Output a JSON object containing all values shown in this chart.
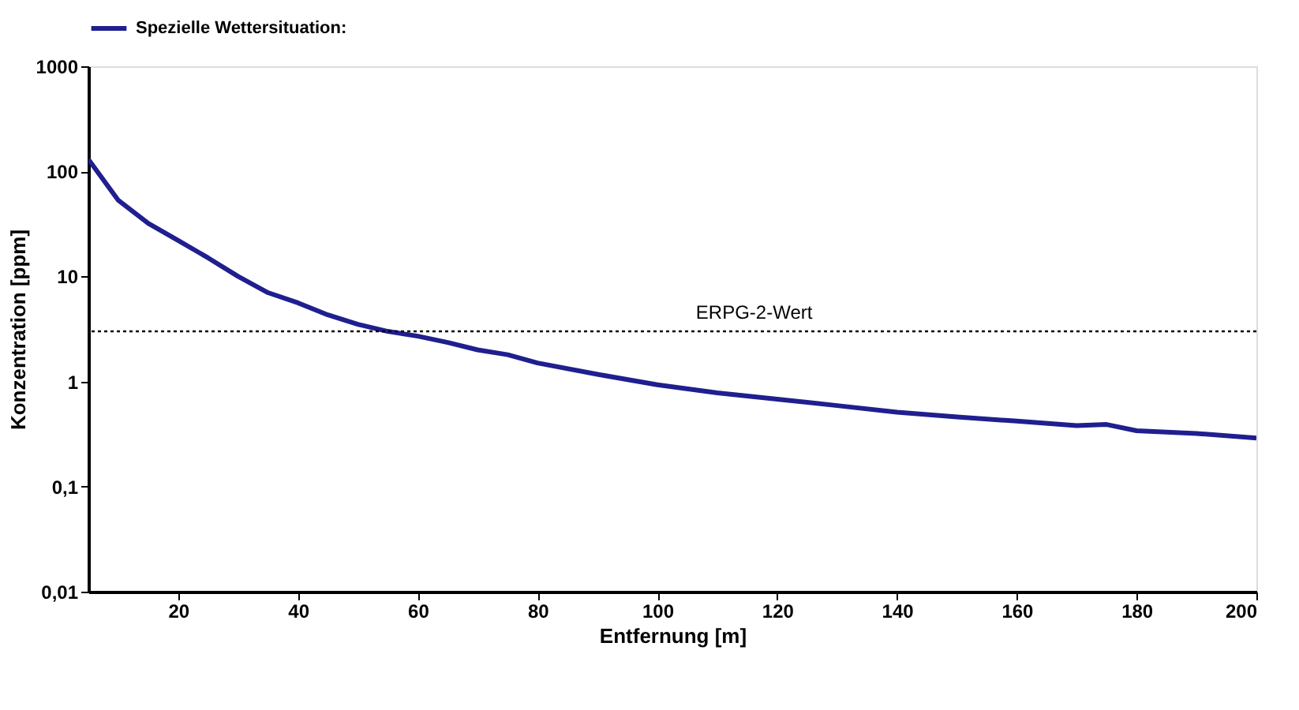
{
  "chart_data": {
    "type": "line",
    "xlabel": "Entfernung [m]",
    "ylabel": "Konzentration [ppm]",
    "x": [
      5,
      10,
      15,
      20,
      25,
      30,
      35,
      40,
      45,
      50,
      55,
      60,
      65,
      70,
      75,
      80,
      90,
      100,
      110,
      120,
      130,
      140,
      150,
      160,
      170,
      175,
      180,
      190,
      200
    ],
    "series": [
      {
        "name": "Spezielle Wettersituation:",
        "color": "#1f1f8f",
        "values": [
          130,
          53,
          32,
          22,
          15,
          10,
          7,
          5.6,
          4.3,
          3.5,
          3.0,
          2.7,
          2.35,
          2.0,
          1.8,
          1.5,
          1.17,
          0.93,
          0.78,
          0.68,
          0.59,
          0.51,
          0.46,
          0.42,
          0.38,
          0.39,
          0.34,
          0.32,
          0.29
        ]
      }
    ],
    "xlim": [
      5,
      200
    ],
    "xticks": [
      20,
      40,
      60,
      80,
      100,
      120,
      140,
      160,
      180,
      200
    ],
    "ylim": [
      0.01,
      1000
    ],
    "yticks": [
      {
        "value": 0.01,
        "label": "0,01"
      },
      {
        "value": 0.1,
        "label": "0,1"
      },
      1,
      10,
      100,
      1000
    ],
    "log": "y",
    "grid": false,
    "legend": "top",
    "marker": "none",
    "line_style": "solid",
    "ref_lines": [
      {
        "axis": "y",
        "value": 3,
        "label": "ERPG-2-Wert",
        "color": "#000000",
        "line_style": "dotted"
      }
    ]
  }
}
